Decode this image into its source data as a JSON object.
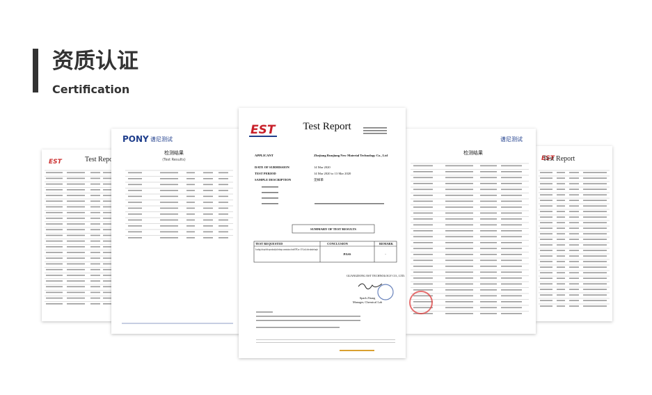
{
  "header": {
    "title": "资质认证",
    "subtitle": "Certification"
  },
  "documents": {
    "far_left": {
      "title": "Test Report",
      "logo": "EST"
    },
    "left": {
      "logo": "PONY",
      "logo_cn": "谱尼测试",
      "heading": "检测结果",
      "heading_en": "(Test Results)"
    },
    "center": {
      "logo": "EST",
      "title": "Test Report",
      "fields": [
        {
          "label": "APPLICANT",
          "value": "Zhejiang Runjiang New Material Technology Co., Ltd"
        },
        {
          "label": "DATE OF SUBMISSION",
          "value": "14 Mar 2020"
        },
        {
          "label": "TEST PERIOD",
          "value": "14 Mar 2020 to 13 Mar 2020"
        },
        {
          "label": "SAMPLE DESCRIPTION",
          "value": "见样单"
        }
      ],
      "summary": "SUMMARY OF TEST RESULTS",
      "table_headers": [
        "TEST REQUESTED",
        "CONCLUSION",
        "REMARK"
      ],
      "table_row": [
        "According to the specified scope and analytical technique, concentrations of tested SVHC are ≤ 0.1% (w/w) in the submitted sample.",
        "PASS",
        "-"
      ],
      "company": "GUANGDONG EST TECHNOLOGY CO., LTD.",
      "signer": "Spark Zhang",
      "signer_title": "Manager, Chemical Lab"
    },
    "right": {
      "logo": "谱尼测试",
      "heading": "检测结果"
    },
    "far_right": {
      "title": "Test Report",
      "logo": "EST"
    }
  }
}
